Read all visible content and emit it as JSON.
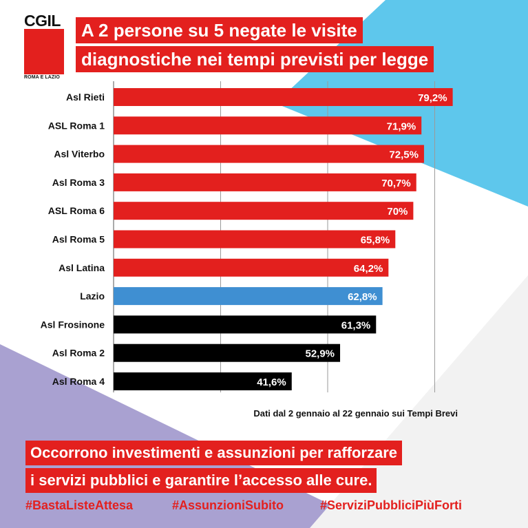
{
  "logo": {
    "text": "CGIL",
    "subtitle": "ROMA E LAZIO"
  },
  "title": {
    "line1": "A 2 persone su 5 negate le visite",
    "line2": "diagnostiche nei tempi previsti per legge"
  },
  "colors": {
    "red": "#e3201e",
    "blue": "#3f8fd2",
    "black": "#000000",
    "cyan_bg": "#5ec7ec",
    "lavender_bg": "#a9a1d1"
  },
  "chart_data": {
    "type": "bar",
    "orientation": "horizontal",
    "categories": [
      "Asl Rieti",
      "ASL Roma 1",
      "Asl Viterbo",
      "Asl Roma 3",
      "ASL Roma 6",
      "Asl Roma 5",
      "Asl Latina",
      "Lazio",
      "Asl Frosinone",
      "Asl Roma 2",
      "Asl Roma 4"
    ],
    "values": [
      79.2,
      71.9,
      72.5,
      70.7,
      70,
      65.8,
      64.2,
      62.8,
      61.3,
      52.9,
      41.6
    ],
    "value_labels": [
      "79,2%",
      "71,9%",
      "72,5%",
      "70,7%",
      "70%",
      "65,8%",
      "64,2%",
      "62,8%",
      "61,3%",
      "52,9%",
      "41,6%"
    ],
    "bar_colors": [
      "red",
      "red",
      "red",
      "red",
      "red",
      "red",
      "red",
      "blue",
      "black",
      "black",
      "black"
    ],
    "xlim": [
      0,
      100
    ],
    "grid": true,
    "gridlines": [
      25,
      50,
      75
    ],
    "title": "",
    "xlabel": "",
    "ylabel": ""
  },
  "source": "Dati dal 2 gennaio al 22 gennaio sui Tempi Brevi",
  "footer": {
    "line1": "Occorrono investimenti e assunzioni per rafforzare",
    "line2": "i servizi pubblici e garantire l’accesso alle cure.",
    "hashtags": [
      "#BastaListeAttesa",
      "#AssunzioniSubito",
      "#ServiziPubbliciPiùForti"
    ]
  }
}
